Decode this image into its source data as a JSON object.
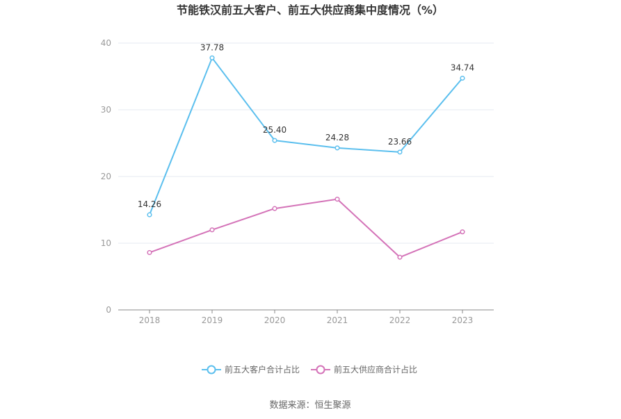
{
  "chart_data": {
    "type": "line",
    "title": "节能铁汉前五大客户、前五大供应商集中度情况（%）",
    "x": [
      "2018",
      "2019",
      "2020",
      "2021",
      "2022",
      "2023"
    ],
    "ylim": [
      0,
      40
    ],
    "yticks": [
      "0",
      "10",
      "20",
      "30",
      "40"
    ],
    "grid": true,
    "legend_position": "bottom",
    "series": [
      {
        "name": "前五大客户合计占比",
        "color": "#5bbfee",
        "values": [
          14.26,
          37.78,
          25.4,
          24.28,
          23.66,
          34.74
        ],
        "labels": [
          "14.26",
          "37.78",
          "25.40",
          "24.28",
          "23.66",
          "34.74"
        ]
      },
      {
        "name": "前五大供应商合计占比",
        "color": "#d473b8",
        "values": [
          8.6,
          12.0,
          15.2,
          16.6,
          7.9,
          11.7
        ],
        "labels": []
      }
    ]
  },
  "source": "数据来源：恒生聚源"
}
